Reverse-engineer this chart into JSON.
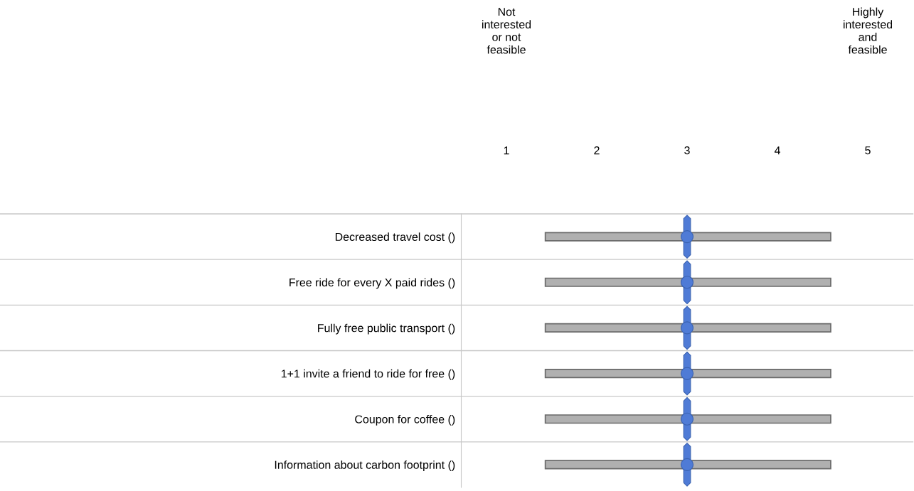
{
  "chart_data": {
    "type": "scatter",
    "orientation": "horizontal",
    "categories": [
      "Decreased travel cost ()",
      "Free ride for every X paid rides ()",
      "Fully free public transport ()",
      "1+1 invite a friend to ride for free ()",
      "Coupon for coffee ()",
      "Information about carbon footprint ()"
    ],
    "series": [
      {
        "color": "#4f7bd6",
        "values": [
          3,
          3,
          3,
          3,
          3,
          3
        ]
      }
    ],
    "xlim": [
      0.5,
      5.5
    ],
    "xticks": [
      1,
      2,
      3,
      4,
      5
    ],
    "annotations": [
      "Not interested or not feasible",
      "Highly interested and feasible"
    ],
    "marker": "circle",
    "grid": false,
    "legend": false
  }
}
